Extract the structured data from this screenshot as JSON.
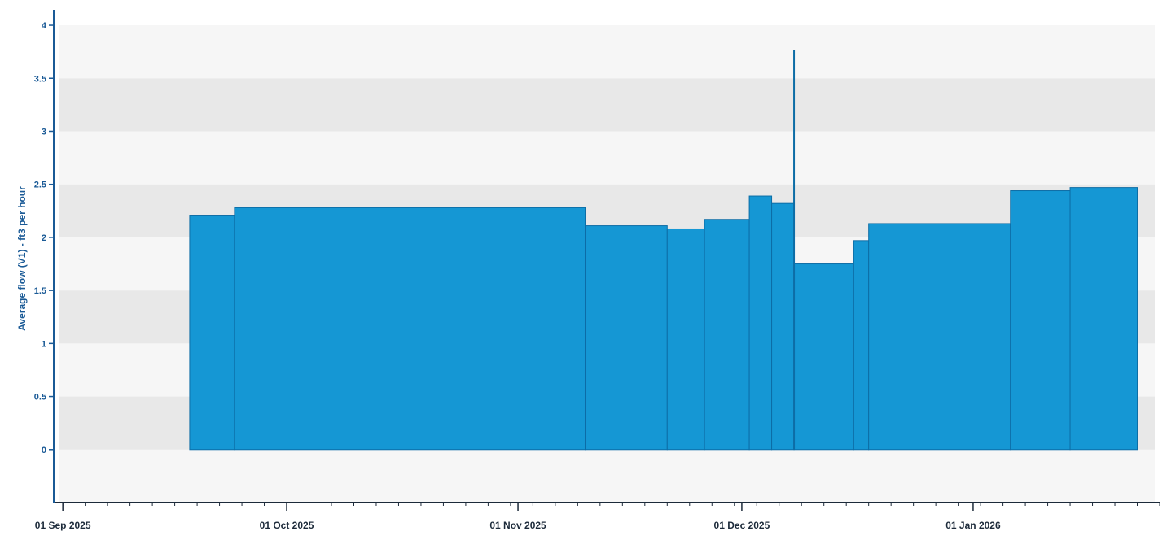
{
  "chart_data": {
    "type": "area",
    "title": "",
    "xlabel": "",
    "ylabel": "Average flow (V1) - ft3 per hour",
    "ylim": [
      -0.5,
      4.1
    ],
    "y_ticks": [
      "0",
      "0.5",
      "1",
      "1.5",
      "2",
      "2.5",
      "3",
      "3.5",
      "4"
    ],
    "x_range": [
      "2025-08-31",
      "2026-01-26"
    ],
    "x_ticks": [
      {
        "date": "2025-09-01",
        "label": "01 Sep 2025"
      },
      {
        "date": "2025-10-01",
        "label": "01 Oct 2025"
      },
      {
        "date": "2025-11-01",
        "label": "01 Nov 2025"
      },
      {
        "date": "2025-12-01",
        "label": "01 Dec 2025"
      },
      {
        "date": "2026-01-01",
        "label": "01 Jan 2026"
      }
    ],
    "series": [
      {
        "steps": [
          {
            "start": "2025-09-18",
            "end": "2025-09-24",
            "value": 2.21
          },
          {
            "start": "2025-09-24",
            "end": "2025-11-10",
            "value": 2.28
          },
          {
            "start": "2025-11-10",
            "end": "2025-11-21",
            "value": 2.11
          },
          {
            "start": "2025-11-21",
            "end": "2025-11-26",
            "value": 2.08
          },
          {
            "start": "2025-11-26",
            "end": "2025-12-02",
            "value": 2.17
          },
          {
            "start": "2025-12-02",
            "end": "2025-12-05",
            "value": 2.39
          },
          {
            "start": "2025-12-05",
            "end": "2025-12-08",
            "value": 2.32
          },
          {
            "start": "2025-12-08",
            "end": "2025-12-16",
            "value": 1.75
          },
          {
            "start": "2025-12-16",
            "end": "2025-12-18",
            "value": 1.97
          },
          {
            "start": "2025-12-18",
            "end": "2026-01-06",
            "value": 2.13
          },
          {
            "start": "2026-01-06",
            "end": "2026-01-14",
            "value": 2.44
          },
          {
            "start": "2026-01-14",
            "end": "2026-01-23",
            "value": 2.47
          }
        ],
        "spike": {
          "date": "2025-12-08",
          "value": 3.77
        }
      }
    ],
    "colors": {
      "fill": "#1597d4",
      "edge": "#0d6da6",
      "band_dark": "#e8e8e8",
      "band_light": "#f6f6f6",
      "axis": "#1a5a96",
      "x_axis": "#1c2a3a"
    }
  }
}
